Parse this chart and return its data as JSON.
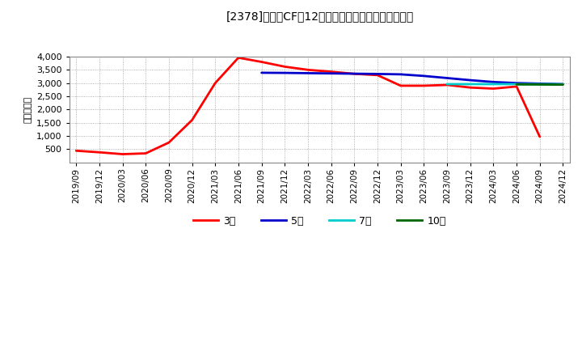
{
  "title": "[2378]　営業CFだ12か月移動合計の標準偏差の推移",
  "ylabel": "（百万円）",
  "ylim": [
    0,
    4000
  ],
  "yticks": [
    500,
    1000,
    1500,
    2000,
    2500,
    3000,
    3500,
    4000
  ],
  "background_color": "#ffffff",
  "plot_bg_color": "#ffffff",
  "grid_color": "#aaaaaa",
  "series": {
    "3y": {
      "color": "#ff0000",
      "label": "3年",
      "linewidth": 2.0,
      "dates": [
        "2019/09",
        "2019/12",
        "2020/03",
        "2020/06",
        "2020/09",
        "2020/12",
        "2021/03",
        "2021/06",
        "2021/09",
        "2021/12",
        "2022/03",
        "2022/06",
        "2022/09",
        "2022/12",
        "2023/03",
        "2023/06",
        "2023/09",
        "2023/12",
        "2024/03",
        "2024/06",
        "2024/09"
      ],
      "values": [
        440,
        380,
        310,
        340,
        750,
        1600,
        3000,
        3960,
        3800,
        3620,
        3500,
        3430,
        3350,
        3300,
        2900,
        2900,
        2930,
        2830,
        2790,
        2870,
        970
      ]
    },
    "5y": {
      "color": "#0000cc",
      "label": "5年",
      "linewidth": 2.0,
      "dates": [
        "2021/09",
        "2021/12",
        "2022/03",
        "2022/06",
        "2022/09",
        "2022/12",
        "2023/03",
        "2023/06",
        "2023/09",
        "2023/12",
        "2024/03",
        "2024/06",
        "2024/09",
        "2024/12"
      ],
      "values": [
        3390,
        3385,
        3375,
        3365,
        3355,
        3345,
        3330,
        3270,
        3190,
        3110,
        3040,
        3000,
        2980,
        2960
      ]
    },
    "7y": {
      "color": "#00cccc",
      "label": "7年",
      "linewidth": 2.0,
      "dates": [
        "2023/09",
        "2023/12",
        "2024/03",
        "2024/06",
        "2024/09",
        "2024/12"
      ],
      "values": [
        2960,
        2960,
        2960,
        2960,
        2960,
        2955
      ]
    },
    "10y": {
      "color": "#006600",
      "label": "10年",
      "linewidth": 2.0,
      "dates": [
        "2024/06",
        "2024/09",
        "2024/12"
      ],
      "values": [
        2950,
        2945,
        2940
      ]
    }
  },
  "xticks": [
    "2019/09",
    "2019/12",
    "2020/03",
    "2020/06",
    "2020/09",
    "2020/12",
    "2021/03",
    "2021/06",
    "2021/09",
    "2021/12",
    "2022/03",
    "2022/06",
    "2022/09",
    "2022/12",
    "2023/03",
    "2023/06",
    "2023/09",
    "2023/12",
    "2024/03",
    "2024/06",
    "2024/09",
    "2024/12"
  ]
}
